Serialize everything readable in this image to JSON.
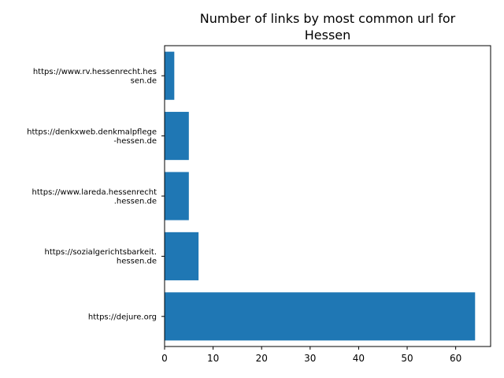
{
  "chart_data": {
    "type": "bar",
    "orientation": "horizontal",
    "title_lines": [
      "Number of links by most common url for",
      "Hessen"
    ],
    "categories": [
      [
        "https://dejure.org"
      ],
      [
        "https://sozialgerichtsbarkeit.",
        "hessen.de"
      ],
      [
        "https://www.lareda.hessenrecht",
        ".hessen.de"
      ],
      [
        "https://denkxweb.denkmalpflege",
        "-hessen.de"
      ],
      [
        "https://www.rv.hessenrecht.hes",
        "sen.de"
      ]
    ],
    "values": [
      64,
      7,
      5,
      5,
      2
    ],
    "xlim": [
      0,
      67.2
    ],
    "xticks": [
      0,
      10,
      20,
      30,
      40,
      50,
      60
    ],
    "bar_color": "#1f77b4",
    "grid": false
  }
}
